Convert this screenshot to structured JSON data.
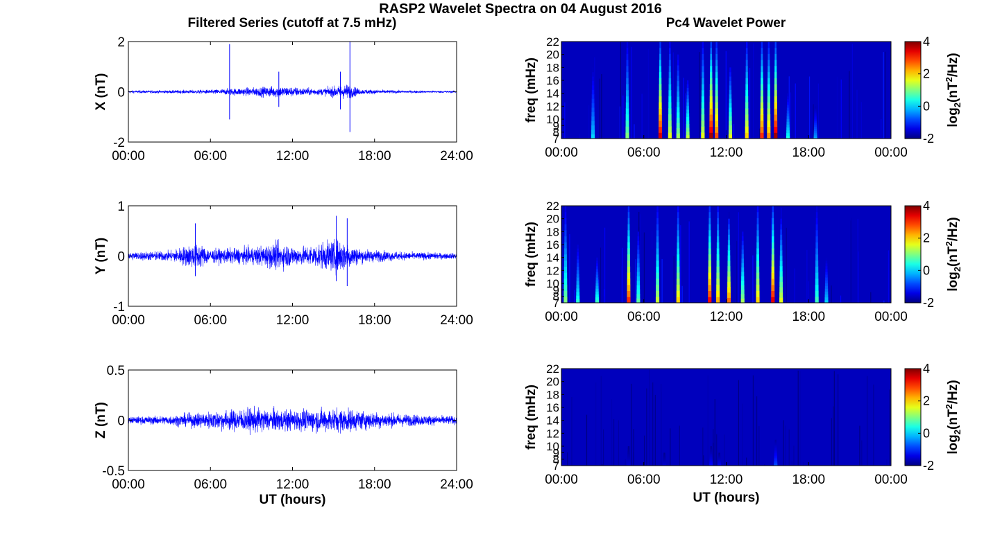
{
  "figure": {
    "title": "RASP2 Wavelet Spectra on 04 August 2016",
    "left_title": "Filtered Series (cutoff at 7.5 mHz)",
    "right_title": "Pc4 Wavelet Power",
    "xlabel": "UT (hours)",
    "colors": {
      "series": "#0000ff",
      "axes": "#000000",
      "grid": "#ffffff"
    }
  },
  "chart_data": [
    {
      "type": "line",
      "name_label": "X (nT)",
      "ylabel": "X (nT)",
      "xlabel": "",
      "xlim": [
        0,
        24
      ],
      "ylim": [
        -2,
        2
      ],
      "xticks": [
        "00:00",
        "06:00",
        "12:00",
        "18:00",
        "24:00"
      ],
      "yticks": [
        "2",
        "0",
        "-2"
      ],
      "ytick_values": [
        2,
        0,
        -2
      ],
      "noise_envelope": [
        {
          "x": 0,
          "amp": 0.08
        },
        {
          "x": 3,
          "amp": 0.09
        },
        {
          "x": 6,
          "amp": 0.12
        },
        {
          "x": 7.5,
          "amp": 0.2
        },
        {
          "x": 9,
          "amp": 0.25
        },
        {
          "x": 11,
          "amp": 0.35
        },
        {
          "x": 12.5,
          "amp": 0.25
        },
        {
          "x": 14,
          "amp": 0.18
        },
        {
          "x": 16,
          "amp": 0.45
        },
        {
          "x": 17,
          "amp": 0.15
        },
        {
          "x": 20,
          "amp": 0.08
        },
        {
          "x": 24,
          "amp": 0.06
        }
      ],
      "spikes": [
        {
          "x": 7.4,
          "max": 1.9,
          "min": -1.1
        },
        {
          "x": 11.0,
          "max": 0.8,
          "min": -0.6
        },
        {
          "x": 15.5,
          "max": 0.8,
          "min": -0.7
        },
        {
          "x": 16.2,
          "max": 2.0,
          "min": -1.6
        }
      ]
    },
    {
      "type": "line",
      "ylabel": "Y (nT)",
      "xlabel": "",
      "xlim": [
        0,
        24
      ],
      "ylim": [
        -1,
        1
      ],
      "xticks": [
        "00:00",
        "06:00",
        "12:00",
        "18:00",
        "24:00"
      ],
      "yticks": [
        "1",
        "0",
        "-1"
      ],
      "ytick_values": [
        1,
        0,
        -1
      ],
      "noise_envelope": [
        {
          "x": 0,
          "amp": 0.12
        },
        {
          "x": 3,
          "amp": 0.15
        },
        {
          "x": 5,
          "amp": 0.4
        },
        {
          "x": 6,
          "amp": 0.2
        },
        {
          "x": 9,
          "amp": 0.25
        },
        {
          "x": 11,
          "amp": 0.4
        },
        {
          "x": 12.5,
          "amp": 0.25
        },
        {
          "x": 15.5,
          "amp": 0.5
        },
        {
          "x": 17,
          "amp": 0.2
        },
        {
          "x": 20,
          "amp": 0.12
        },
        {
          "x": 24,
          "amp": 0.08
        }
      ],
      "spikes": [
        {
          "x": 4.9,
          "max": 0.65,
          "min": -0.4
        },
        {
          "x": 15.2,
          "max": 0.8,
          "min": -0.5
        },
        {
          "x": 16.0,
          "max": 0.75,
          "min": -0.6
        }
      ]
    },
    {
      "type": "line",
      "ylabel": "Z (nT)",
      "xlabel": "UT (hours)",
      "xlim": [
        0,
        24
      ],
      "ylim": [
        -0.5,
        0.5
      ],
      "xticks": [
        "00:00",
        "06:00",
        "12:00",
        "18:00",
        "24:00"
      ],
      "yticks": [
        "0.5",
        "0",
        "-0.5"
      ],
      "ytick_values": [
        0.5,
        0,
        -0.5
      ],
      "noise_envelope": [
        {
          "x": 0,
          "amp": 0.05
        },
        {
          "x": 3,
          "amp": 0.07
        },
        {
          "x": 6,
          "amp": 0.13
        },
        {
          "x": 9,
          "amp": 0.18
        },
        {
          "x": 12,
          "amp": 0.15
        },
        {
          "x": 15.5,
          "amp": 0.18
        },
        {
          "x": 18,
          "amp": 0.12
        },
        {
          "x": 21,
          "amp": 0.08
        },
        {
          "x": 24,
          "amp": 0.06
        }
      ],
      "spikes": []
    },
    {
      "type": "heatmap",
      "ylabel": "freq (mHz)",
      "xlabel": "",
      "xlim": [
        0,
        24
      ],
      "ylim": [
        7,
        22
      ],
      "xticks": [
        "00:00",
        "06:00",
        "12:00",
        "18:00",
        "00:00"
      ],
      "yticks": [
        "22",
        "20",
        "18",
        "16",
        "14",
        "12",
        "10",
        "9",
        "8",
        "7"
      ],
      "ytick_values": [
        22,
        20,
        18,
        16,
        14,
        12,
        10,
        9,
        8,
        7
      ],
      "colorbar": {
        "label": "log2(nT^2/Hz)",
        "ticks": [
          "4",
          "2",
          "0",
          "-2"
        ],
        "tick_values": [
          4,
          2,
          0,
          -2
        ],
        "range": [
          -2,
          4
        ]
      },
      "background_value": -2,
      "streaks": [
        {
          "x": 2.3,
          "peak": 0.0,
          "topf": 18
        },
        {
          "x": 4.8,
          "peak": 1.0,
          "topf": 22
        },
        {
          "x": 7.2,
          "peak": 3.5,
          "topf": 22
        },
        {
          "x": 7.9,
          "peak": 1.6,
          "topf": 22
        },
        {
          "x": 8.5,
          "peak": 1.2,
          "topf": 20
        },
        {
          "x": 9.2,
          "peak": 1.4,
          "topf": 16
        },
        {
          "x": 10.3,
          "peak": 1.6,
          "topf": 22
        },
        {
          "x": 10.9,
          "peak": 3.8,
          "topf": 22
        },
        {
          "x": 11.3,
          "peak": 2.8,
          "topf": 22
        },
        {
          "x": 12.3,
          "peak": 1.6,
          "topf": 18
        },
        {
          "x": 13.5,
          "peak": 2.0,
          "topf": 22
        },
        {
          "x": 14.6,
          "peak": 3.0,
          "topf": 22
        },
        {
          "x": 15.1,
          "peak": 2.4,
          "topf": 22
        },
        {
          "x": 15.6,
          "peak": 3.8,
          "topf": 22
        },
        {
          "x": 16.5,
          "peak": 0.4,
          "topf": 14
        },
        {
          "x": 18.5,
          "peak": -0.3,
          "topf": 12
        }
      ]
    },
    {
      "type": "heatmap",
      "ylabel": "freq (mHz)",
      "xlabel": "",
      "xlim": [
        0,
        24
      ],
      "ylim": [
        7,
        22
      ],
      "xticks": [
        "00:00",
        "06:00",
        "12:00",
        "18:00",
        "00:00"
      ],
      "yticks": [
        "22",
        "20",
        "18",
        "16",
        "14",
        "12",
        "10",
        "9",
        "8",
        "7"
      ],
      "ytick_values": [
        22,
        20,
        18,
        16,
        14,
        12,
        10,
        9,
        8,
        7
      ],
      "colorbar": {
        "label": "log2(nT^2/Hz)",
        "ticks": [
          "4",
          "2",
          "0",
          "-2"
        ],
        "tick_values": [
          4,
          2,
          0,
          -2
        ],
        "range": [
          -2,
          4
        ]
      },
      "background_value": -2,
      "streaks": [
        {
          "x": 0.3,
          "peak": 1.0,
          "topf": 22
        },
        {
          "x": 1.2,
          "peak": 0.5,
          "topf": 16
        },
        {
          "x": 2.6,
          "peak": 0.6,
          "topf": 14
        },
        {
          "x": 4.9,
          "peak": 3.0,
          "topf": 22
        },
        {
          "x": 5.6,
          "peak": 0.8,
          "topf": 18
        },
        {
          "x": 7.0,
          "peak": 1.4,
          "topf": 22
        },
        {
          "x": 8.5,
          "peak": 2.0,
          "topf": 22
        },
        {
          "x": 10.8,
          "peak": 3.2,
          "topf": 22
        },
        {
          "x": 11.4,
          "peak": 2.2,
          "topf": 22
        },
        {
          "x": 12.2,
          "peak": 2.6,
          "topf": 20
        },
        {
          "x": 13.2,
          "peak": 1.2,
          "topf": 18
        },
        {
          "x": 14.3,
          "peak": 2.0,
          "topf": 22
        },
        {
          "x": 15.4,
          "peak": 3.4,
          "topf": 22
        },
        {
          "x": 16.0,
          "peak": 1.6,
          "topf": 20
        },
        {
          "x": 18.6,
          "peak": 0.6,
          "topf": 22
        },
        {
          "x": 19.3,
          "peak": 0.0,
          "topf": 14
        }
      ]
    },
    {
      "type": "heatmap",
      "ylabel": "freq (mHz)",
      "xlabel": "UT (hours)",
      "xlim": [
        0,
        24
      ],
      "ylim": [
        7,
        22
      ],
      "xticks": [
        "00:00",
        "06:00",
        "12:00",
        "18:00",
        "00:00"
      ],
      "yticks": [
        "22",
        "20",
        "18",
        "16",
        "14",
        "12",
        "10",
        "9",
        "8",
        "7"
      ],
      "ytick_values": [
        22,
        20,
        18,
        16,
        14,
        12,
        10,
        9,
        8,
        7
      ],
      "colorbar": {
        "label": "log2(nT^2/Hz)",
        "ticks": [
          "4",
          "2",
          "0",
          "-2"
        ],
        "tick_values": [
          4,
          2,
          0,
          -2
        ],
        "range": [
          -2,
          4
        ]
      },
      "background_value": -2,
      "streaks": [
        {
          "x": 4.9,
          "peak": -1.5,
          "topf": 10
        },
        {
          "x": 7.5,
          "peak": -1.5,
          "topf": 9
        },
        {
          "x": 10.9,
          "peak": -1.2,
          "topf": 10
        },
        {
          "x": 11.5,
          "peak": -1.3,
          "topf": 9
        },
        {
          "x": 15.6,
          "peak": -0.8,
          "topf": 11
        }
      ]
    }
  ]
}
